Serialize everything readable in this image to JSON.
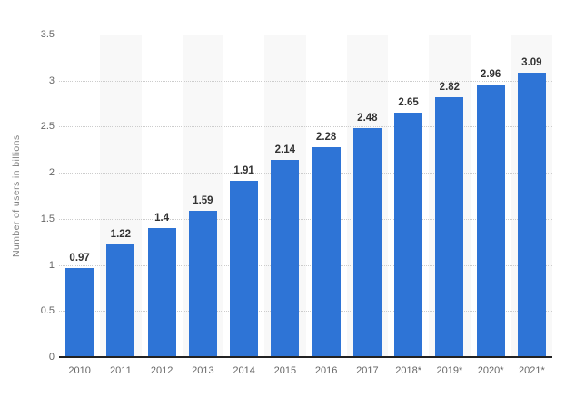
{
  "chart_data": {
    "type": "bar",
    "title": "",
    "xlabel": "",
    "ylabel": "Number of users in billions",
    "categories": [
      "2010",
      "2011",
      "2012",
      "2013",
      "2014",
      "2015",
      "2016",
      "2017",
      "2018*",
      "2019*",
      "2020*",
      "2021*"
    ],
    "values": [
      0.97,
      1.22,
      1.4,
      1.59,
      1.91,
      2.14,
      2.28,
      2.48,
      2.65,
      2.82,
      2.96,
      3.09
    ],
    "value_labels": [
      "0.97",
      "1.22",
      "1.4",
      "1.59",
      "1.91",
      "2.14",
      "2.28",
      "2.48",
      "2.65",
      "2.82",
      "2.96",
      "3.09"
    ],
    "y_ticks": [
      0,
      0.5,
      1,
      1.5,
      2,
      2.5,
      3,
      3.5
    ],
    "y_tick_labels": [
      "0",
      "0.5",
      "1",
      "1.5",
      "2",
      "2.5",
      "3",
      "3.5"
    ],
    "ylim": [
      0,
      3.5
    ],
    "grid": "horizontal-dotted",
    "legend": "none",
    "band_pattern": "alternating-columns-odd",
    "colors": {
      "bar": "#2e74d6",
      "column_band": "#f8f8f8",
      "gridline": "#cccccc",
      "axis_line": "#222222",
      "tick_label": "#666666",
      "value_label": "#333333",
      "y_title": "#808080",
      "background": "#ffffff"
    }
  }
}
